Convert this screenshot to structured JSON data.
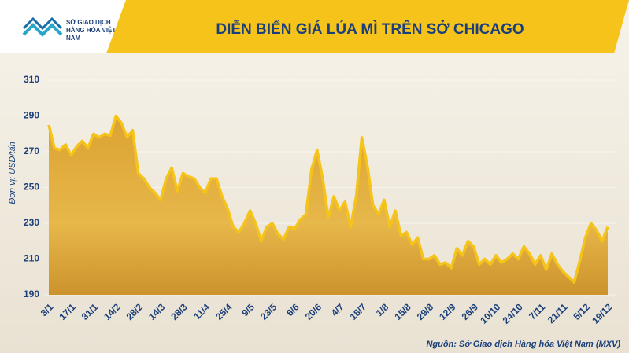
{
  "logo": "SỞ GIAO DỊCH HÀNG HÓA VIỆT NAM",
  "chart_data": {
    "type": "area",
    "title": "DIỄN BIẾN GIÁ LÚA MÌ TRÊN SỞ CHICAGO",
    "ylabel": "Đơn vị: USD/tấn",
    "source": "Nguồn: Sở Giao dịch Hàng hóa Việt Nam (MXV)",
    "categories": [
      "3/1",
      null,
      null,
      null,
      "17/1",
      null,
      null,
      null,
      "31/1",
      null,
      null,
      null,
      "14/2",
      null,
      null,
      null,
      "28/2",
      null,
      null,
      null,
      "14/3",
      null,
      null,
      null,
      "28/3",
      null,
      null,
      null,
      "11/4",
      null,
      null,
      null,
      "25/4",
      null,
      null,
      null,
      "9/5",
      null,
      null,
      null,
      "23/5",
      null,
      null,
      null,
      "6/6",
      null,
      null,
      null,
      "20/6",
      null,
      null,
      null,
      "4/7",
      null,
      null,
      null,
      "18/7",
      null,
      null,
      null,
      "1/8",
      null,
      null,
      null,
      "15/8",
      null,
      null,
      null,
      "29/8",
      null,
      null,
      null,
      "12/9",
      null,
      null,
      null,
      "26/9",
      null,
      null,
      null,
      "10/10",
      null,
      null,
      null,
      "24/10",
      null,
      null,
      null,
      "7/11",
      null,
      null,
      null,
      "21/11",
      null,
      null,
      null,
      "5/12",
      null,
      null,
      null,
      "19/12"
    ],
    "values": [
      285,
      272,
      271,
      274,
      268,
      273,
      276,
      272,
      280,
      278,
      280,
      279,
      290,
      286,
      278,
      282,
      258,
      255,
      250,
      247,
      243,
      255,
      261,
      248,
      258,
      256,
      255,
      250,
      247,
      255,
      255,
      245,
      238,
      228,
      225,
      230,
      237,
      230,
      220,
      228,
      230,
      224,
      221,
      228,
      227,
      232,
      235,
      260,
      271,
      255,
      233,
      245,
      237,
      242,
      228,
      245,
      278,
      262,
      240,
      235,
      243,
      228,
      237,
      223,
      225,
      218,
      222,
      210,
      210,
      212,
      207,
      208,
      205,
      216,
      212,
      220,
      217,
      207,
      210,
      207,
      212,
      208,
      210,
      213,
      210,
      217,
      213,
      207,
      212,
      204,
      213,
      207,
      203,
      200,
      197,
      209,
      222,
      230,
      226,
      220,
      228
    ],
    "color": "#f5c31a",
    "ylim": [
      190,
      310
    ],
    "yticks": [
      190,
      210,
      230,
      250,
      270,
      290,
      310
    ]
  }
}
